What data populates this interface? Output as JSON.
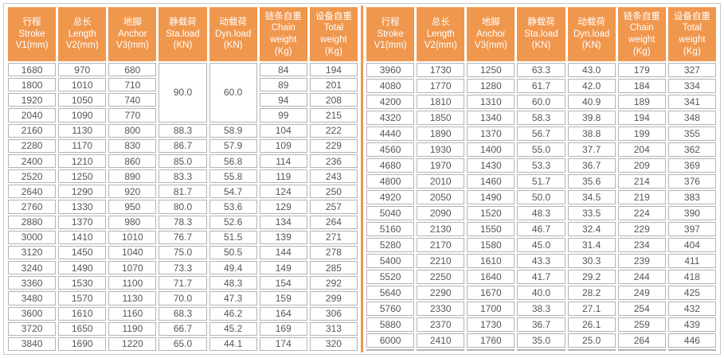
{
  "colors": {
    "accent_orange": "#F0974E",
    "cell_border": "#B3B3B3",
    "outer_border": "#C9C9C9",
    "data_text": "#545659",
    "header_text": "#FFFFFF"
  },
  "header": {
    "columns": [
      {
        "key": "stroke",
        "lines": [
          "行程",
          "Stroke",
          "V1(mm)"
        ]
      },
      {
        "key": "length",
        "lines": [
          "总长",
          "Length",
          "V2(mm)"
        ]
      },
      {
        "key": "anchor",
        "lines": [
          "地脚",
          "Anchor",
          "V3(mm)"
        ]
      },
      {
        "key": "sta-load",
        "lines": [
          "静载荷",
          "Sta.load",
          "(KN)"
        ]
      },
      {
        "key": "dyn-load",
        "lines": [
          "动载荷",
          "Dyn.load",
          "(KN)"
        ]
      },
      {
        "key": "chain-weight",
        "lines": [
          "链条自重",
          "Chain",
          "weight",
          "(Kg)"
        ]
      },
      {
        "key": "total-weight",
        "lines": [
          "设备自重",
          "Total",
          "weight",
          "(Kg)"
        ]
      }
    ]
  },
  "left_table": {
    "merges": [
      {
        "row": 0,
        "col": 3,
        "rowspan": 4,
        "value": "90.0"
      },
      {
        "row": 0,
        "col": 4,
        "rowspan": 4,
        "value": "60.0"
      }
    ],
    "rows": [
      [
        "1680",
        "970",
        "680",
        "",
        "",
        "84",
        "194"
      ],
      [
        "1800",
        "1010",
        "710",
        "",
        "",
        "89",
        "201"
      ],
      [
        "1920",
        "1050",
        "740",
        "",
        "",
        "94",
        "208"
      ],
      [
        "2040",
        "1090",
        "770",
        "",
        "",
        "99",
        "215"
      ],
      [
        "2160",
        "1130",
        "800",
        "88.3",
        "58.9",
        "104",
        "222"
      ],
      [
        "2280",
        "1170",
        "830",
        "86.7",
        "57.9",
        "109",
        "229"
      ],
      [
        "2400",
        "1210",
        "860",
        "85.0",
        "56.8",
        "114",
        "236"
      ],
      [
        "2520",
        "1250",
        "890",
        "83.3",
        "55.8",
        "119",
        "243"
      ],
      [
        "2640",
        "1290",
        "920",
        "81.7",
        "54.7",
        "124",
        "250"
      ],
      [
        "2760",
        "1330",
        "950",
        "80.0",
        "53.6",
        "129",
        "257"
      ],
      [
        "2880",
        "1370",
        "980",
        "78.3",
        "52.6",
        "134",
        "264"
      ],
      [
        "3000",
        "1410",
        "1010",
        "76.7",
        "51.5",
        "139",
        "271"
      ],
      [
        "3120",
        "1450",
        "1040",
        "75.0",
        "50.5",
        "144",
        "278"
      ],
      [
        "3240",
        "1490",
        "1070",
        "73.3",
        "49.4",
        "149",
        "285"
      ],
      [
        "3360",
        "1530",
        "1100",
        "71.7",
        "48.3",
        "154",
        "292"
      ],
      [
        "3480",
        "1570",
        "1130",
        "70.0",
        "47.3",
        "159",
        "299"
      ],
      [
        "3600",
        "1610",
        "1160",
        "68.3",
        "46.2",
        "164",
        "306"
      ],
      [
        "3720",
        "1650",
        "1190",
        "66.7",
        "45.2",
        "169",
        "313"
      ],
      [
        "3840",
        "1690",
        "1220",
        "65.0",
        "44.1",
        "174",
        "320"
      ]
    ]
  },
  "right_table": {
    "merges": [],
    "rows": [
      [
        "3960",
        "1730",
        "1250",
        "63.3",
        "43.0",
        "179",
        "327"
      ],
      [
        "4080",
        "1770",
        "1280",
        "61.7",
        "42.0",
        "184",
        "334"
      ],
      [
        "4200",
        "1810",
        "1310",
        "60.0",
        "40.9",
        "189",
        "341"
      ],
      [
        "4320",
        "1850",
        "1340",
        "58.3",
        "39.8",
        "194",
        "348"
      ],
      [
        "4440",
        "1890",
        "1370",
        "56.7",
        "38.8",
        "199",
        "355"
      ],
      [
        "4560",
        "1930",
        "1400",
        "55.0",
        "37.7",
        "204",
        "362"
      ],
      [
        "4680",
        "1970",
        "1430",
        "53.3",
        "36.7",
        "209",
        "369"
      ],
      [
        "4800",
        "2010",
        "1460",
        "51.7",
        "35.6",
        "214",
        "376"
      ],
      [
        "4920",
        "2050",
        "1490",
        "50.0",
        "34.5",
        "219",
        "383"
      ],
      [
        "5040",
        "2090",
        "1520",
        "48.3",
        "33.5",
        "224",
        "390"
      ],
      [
        "5160",
        "2130",
        "1550",
        "46.7",
        "32.4",
        "229",
        "397"
      ],
      [
        "5280",
        "2170",
        "1580",
        "45.0",
        "31.4",
        "234",
        "404"
      ],
      [
        "5400",
        "2210",
        "1610",
        "43.3",
        "30.3",
        "239",
        "411"
      ],
      [
        "5520",
        "2250",
        "1640",
        "41.7",
        "29.2",
        "244",
        "418"
      ],
      [
        "5640",
        "2290",
        "1670",
        "40.0",
        "28.2",
        "249",
        "425"
      ],
      [
        "5760",
        "2330",
        "1700",
        "38.3",
        "27.1",
        "254",
        "432"
      ],
      [
        "5880",
        "2370",
        "1730",
        "36.7",
        "26.1",
        "259",
        "439"
      ],
      [
        "6000",
        "2410",
        "1760",
        "35.0",
        "25.0",
        "264",
        "446"
      ],
      [
        "",
        "",
        "",
        "",
        "",
        "",
        ""
      ]
    ]
  }
}
